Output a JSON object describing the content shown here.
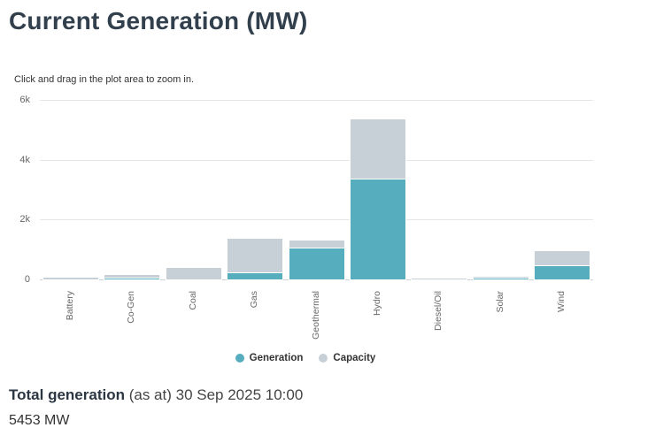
{
  "page": {
    "title": "Current Generation (MW)",
    "hint": "Click and drag in the plot area to zoom in."
  },
  "chart_data": {
    "type": "bar",
    "title": "Current Generation (MW)",
    "categories": [
      "Battery",
      "Co-Gen",
      "Coal",
      "Gas",
      "Geothermal",
      "Hydro",
      "Diesel/Oil",
      "Solar",
      "Wind"
    ],
    "series": [
      {
        "name": "Generation",
        "color": "#55ADBE",
        "values": [
          3,
          80,
          0,
          280,
          1100,
          3400,
          0,
          100,
          490
        ]
      },
      {
        "name": "Capacity",
        "color": "#C7D0D6",
        "values": [
          110,
          200,
          450,
          1430,
          1360,
          5400,
          100,
          150,
          1000
        ]
      }
    ],
    "xlabel": "",
    "ylabel": "",
    "ylim": [
      0,
      6200
    ],
    "yticks": [
      {
        "value": 0,
        "label": "0"
      },
      {
        "value": 2000,
        "label": "2k"
      },
      {
        "value": 4000,
        "label": "4k"
      },
      {
        "value": 6000,
        "label": "6k"
      }
    ],
    "grid": true,
    "legend_position": "bottom-center",
    "bar_overlay": "generation drawn in front of capacity (not stacked)"
  },
  "footer": {
    "total_label": "Total generation",
    "as_at": "(as at) 30 Sep 2025 10:00",
    "total_value": "5453 MW"
  },
  "colors": {
    "generation": "#55ADBE",
    "capacity": "#C7D0D6",
    "title": "#32404E",
    "gridline": "#E6E6E6",
    "axis_text": "#666666"
  }
}
